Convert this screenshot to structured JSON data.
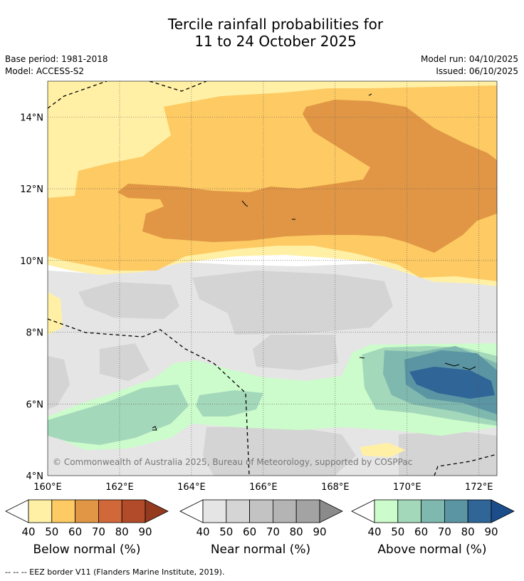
{
  "header": {
    "title_line1": "Tercile rainfall probabilities for",
    "title_line2": "11 to 24 October 2025",
    "base_period": "Base period: 1981-2018",
    "model": "Model: ACCESS-S2",
    "model_run": "Model run: 04/10/2025",
    "issued": "Issued: 06/10/2025"
  },
  "chart_data": {
    "type": "heatmap",
    "title": "Tercile rainfall probabilities for 11 to 24 October 2025",
    "x_axis": {
      "range": [
        160,
        172.5
      ],
      "ticks": [
        160,
        162,
        164,
        166,
        168,
        170,
        172
      ],
      "tick_labels": [
        "160°E",
        "162°E",
        "164°E",
        "166°E",
        "168°E",
        "170°E",
        "172°E"
      ]
    },
    "y_axis": {
      "range": [
        4,
        15
      ],
      "ticks": [
        4,
        6,
        8,
        10,
        12,
        14
      ],
      "tick_labels": [
        "4°N",
        "6°N",
        "8°N",
        "10°N",
        "12°N",
        "14°N"
      ]
    },
    "grid": true,
    "copyright": "© Commonwealth of Australia 2025, Bureau of Meteorology, supported by COSPPac",
    "regions": [
      {
        "category": "below",
        "level": "50-60",
        "description": "orange band 10-15N"
      },
      {
        "category": "below",
        "level": "60-70",
        "description": "dark orange core 10.7-13.5N, 162-172E"
      },
      {
        "category": "near",
        "level": "40-50",
        "description": "grey band 4-10N"
      },
      {
        "category": "above",
        "level": "50-60",
        "description": "green band 5-7N"
      },
      {
        "category": "above",
        "level": "80-90",
        "description": "blue core near 6.5N 171E"
      }
    ],
    "colorbars": [
      {
        "label": "Below normal (%)",
        "ticks": [
          "40",
          "50",
          "60",
          "70",
          "80",
          "90"
        ],
        "colors": [
          "#fff0a5",
          "#fdca63",
          "#e09645",
          "#d1683a",
          "#b24b29",
          "#933a1f"
        ]
      },
      {
        "label": "Near normal (%)",
        "ticks": [
          "40",
          "50",
          "60",
          "70",
          "80",
          "90"
        ],
        "colors": [
          "#e5e5e5",
          "#d5d5d5",
          "#c3c3c3",
          "#b4b4b4",
          "#a3a3a3",
          "#8b8b8b"
        ]
      },
      {
        "label": "Above normal (%)",
        "ticks": [
          "40",
          "50",
          "60",
          "70",
          "80",
          "90"
        ],
        "colors": [
          "#ccfccb",
          "#a4d8bb",
          "#7fb8ae",
          "#5b95a4",
          "#2f6597",
          "#1b4d8a"
        ]
      }
    ]
  },
  "footnote": "--  --  -- EEZ border V11 (Flanders Marine Institute, 2019)."
}
